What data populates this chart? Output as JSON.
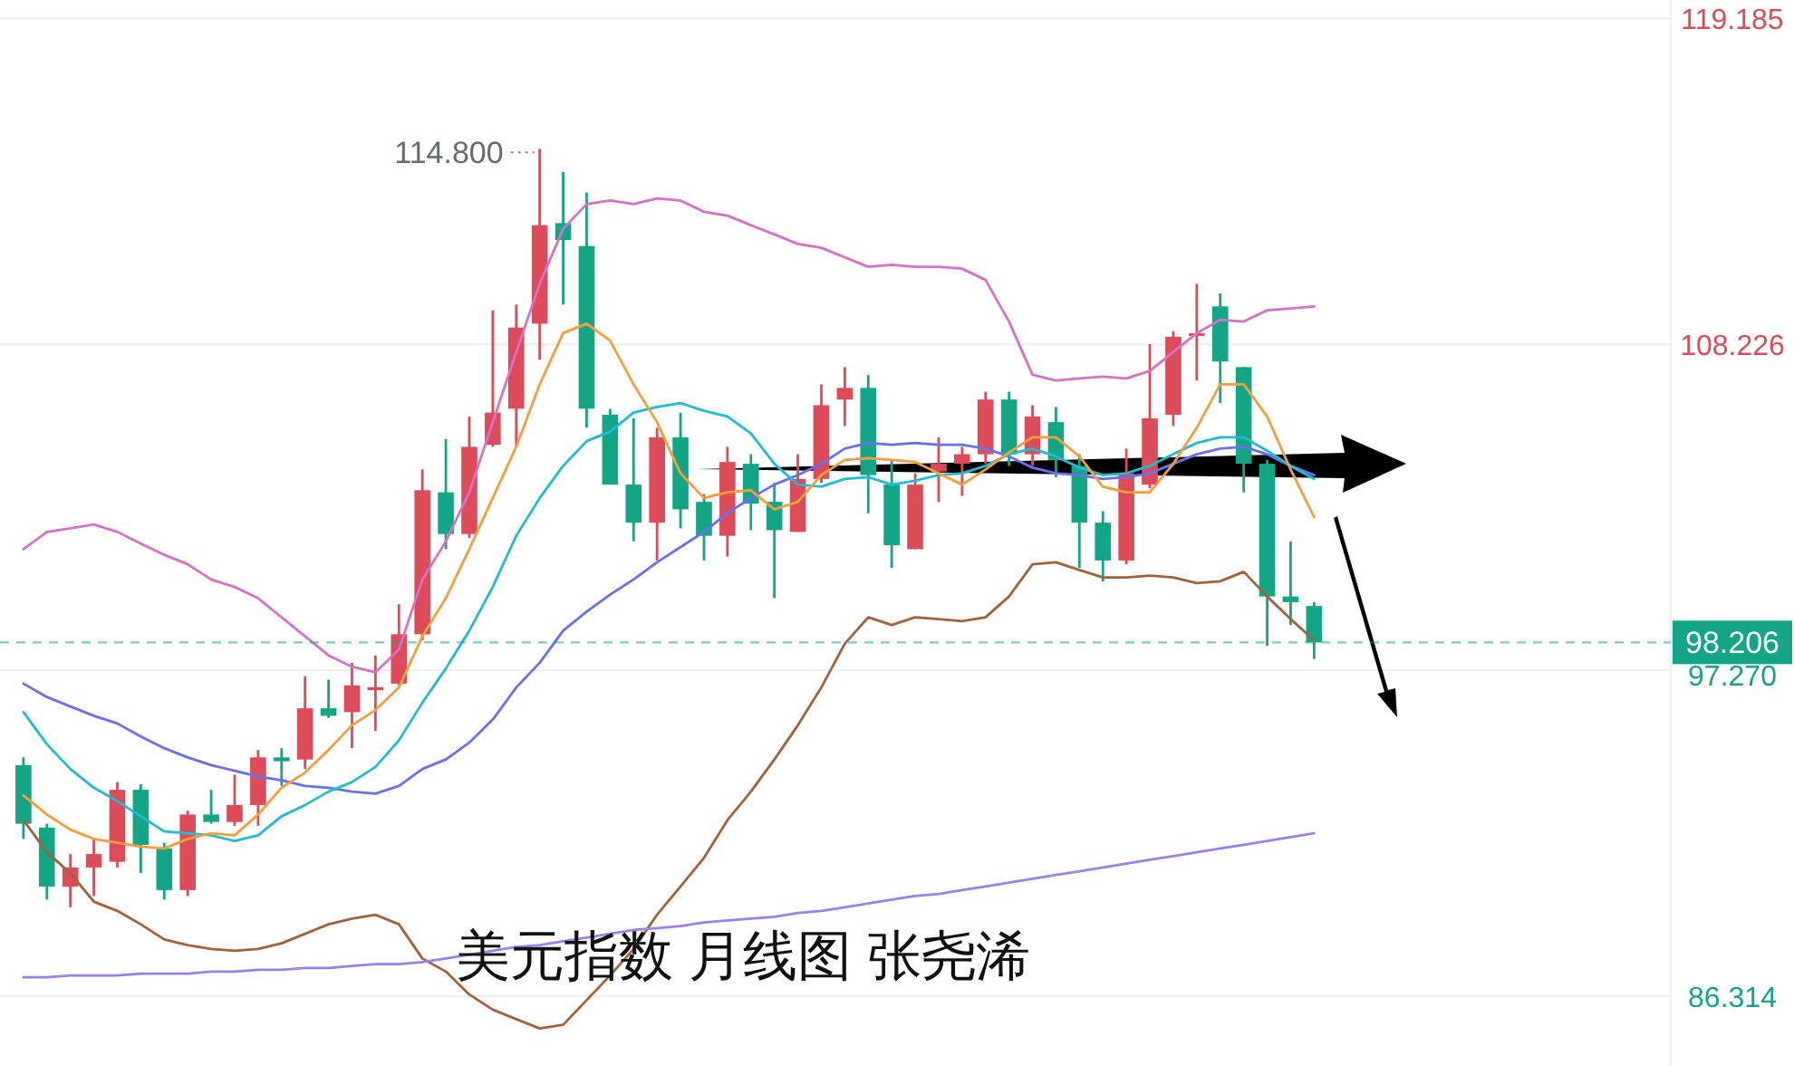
{
  "chart_data": {
    "type": "candlestick",
    "categories": [
      null,
      null,
      null,
      null,
      null,
      null,
      null,
      null,
      null,
      null,
      null,
      null,
      null,
      null,
      null,
      null,
      null,
      null,
      null,
      null,
      null,
      null,
      null,
      null,
      null,
      null,
      null,
      null,
      null,
      null,
      null,
      null,
      null,
      null,
      null,
      null,
      null,
      null,
      null,
      null,
      null,
      null,
      null,
      null,
      null,
      null,
      null,
      null,
      null,
      null,
      null,
      null,
      null,
      null,
      null,
      null
    ],
    "ohlc": [
      [
        94.08,
        94.34,
        91.6,
        92.11
      ],
      [
        91.98,
        92.11,
        89.56,
        90.0
      ],
      [
        90.0,
        91.09,
        89.3,
        90.64
      ],
      [
        90.64,
        91.6,
        89.68,
        91.09
      ],
      [
        90.83,
        93.51,
        90.64,
        93.25
      ],
      [
        93.25,
        93.44,
        90.45,
        91.4
      ],
      [
        91.28,
        91.47,
        89.56,
        89.88
      ],
      [
        89.88,
        92.55,
        89.68,
        92.42
      ],
      [
        92.42,
        93.25,
        92.11,
        92.17
      ],
      [
        92.17,
        93.76,
        92.04,
        92.74
      ],
      [
        92.74,
        94.59,
        92.04,
        94.34
      ],
      [
        94.34,
        94.65,
        93.38,
        94.21
      ],
      [
        94.27,
        97.07,
        93.95,
        95.99
      ],
      [
        95.99,
        96.95,
        95.67,
        95.74
      ],
      [
        95.86,
        97.52,
        94.65,
        96.76
      ],
      [
        96.6,
        97.77,
        95.23,
        96.7
      ],
      [
        96.82,
        99.49,
        96.76,
        98.48
      ],
      [
        98.48,
        104.02,
        98.28,
        103.32
      ],
      [
        103.25,
        105.04,
        101.34,
        101.85
      ],
      [
        101.85,
        105.8,
        101.72,
        104.78
      ],
      [
        104.85,
        109.37,
        104.78,
        105.93
      ],
      [
        106.06,
        109.56,
        104.78,
        108.79
      ],
      [
        108.92,
        114.8,
        107.71,
        112.23
      ],
      [
        112.3,
        114.02,
        109.56,
        111.73
      ],
      [
        111.53,
        113.32,
        105.42,
        106.06
      ],
      [
        105.86,
        106.06,
        103.51,
        103.51
      ],
      [
        103.51,
        105.74,
        101.6,
        102.23
      ],
      [
        102.23,
        105.42,
        100.96,
        105.1
      ],
      [
        105.1,
        105.93,
        102.04,
        102.68
      ],
      [
        102.93,
        103.19,
        100.96,
        101.79
      ],
      [
        101.79,
        104.78,
        101.09,
        104.27
      ],
      [
        104.21,
        104.53,
        101.98,
        102.87
      ],
      [
        102.93,
        103.57,
        99.69,
        101.98
      ],
      [
        101.92,
        104.53,
        101.92,
        103.7
      ],
      [
        103.7,
        106.88,
        103.57,
        106.18
      ],
      [
        106.37,
        107.46,
        105.48,
        106.76
      ],
      [
        106.76,
        107.2,
        102.55,
        103.83
      ],
      [
        103.51,
        104.34,
        100.71,
        101.47
      ],
      [
        101.34,
        103.89,
        101.34,
        103.51
      ],
      [
        103.95,
        105.1,
        102.93,
        104.21
      ],
      [
        104.21,
        104.78,
        103.13,
        104.53
      ],
      [
        104.53,
        106.63,
        104.21,
        106.37
      ],
      [
        106.37,
        106.63,
        104.14,
        104.53
      ],
      [
        104.53,
        106.18,
        104.14,
        105.8
      ],
      [
        105.61,
        106.12,
        103.76,
        104.34
      ],
      [
        104.14,
        104.53,
        100.71,
        102.23
      ],
      [
        102.23,
        102.62,
        100.26,
        100.96
      ],
      [
        100.96,
        104.72,
        100.83,
        103.89
      ],
      [
        103.51,
        108.23,
        103.38,
        105.74
      ],
      [
        105.86,
        108.67,
        105.48,
        108.48
      ],
      [
        108.55,
        110.26,
        107.01,
        108.6
      ],
      [
        109.5,
        109.94,
        106.25,
        107.65
      ],
      [
        107.46,
        107.46,
        103.25,
        104.21
      ],
      [
        104.21,
        104.34,
        98.09,
        99.75
      ],
      [
        99.75,
        101.6,
        98.79,
        99.56
      ],
      [
        99.43,
        99.56,
        97.65,
        98.206
      ]
    ],
    "colors": [
      "#12a586",
      "#12a586",
      "#dd4b58",
      "#dd4b58",
      "#dd4b58",
      "#12a586",
      "#12a586",
      "#dd4b58",
      "#12a586",
      "#dd4b58",
      "#dd4b58",
      "#12a586",
      "#dd4b58",
      "#12a586",
      "#dd4b58",
      "#dd4b58",
      "#dd4b58",
      "#dd4b58",
      "#12a586",
      "#dd4b58",
      "#dd4b58",
      "#dd4b58",
      "#dd4b58",
      "#12a586",
      "#12a586",
      "#12a586",
      "#12a586",
      "#dd4b58",
      "#12a586",
      "#12a586",
      "#dd4b58",
      "#12a586",
      "#12a586",
      "#dd4b58",
      "#dd4b58",
      "#dd4b58",
      "#12a586",
      "#12a586",
      "#dd4b58",
      "#dd4b58",
      "#dd4b58",
      "#dd4b58",
      "#12a586",
      "#dd4b58",
      "#12a586",
      "#12a586",
      "#12a586",
      "#dd4b58",
      "#dd4b58",
      "#dd4b58",
      "#dd4b58",
      "#12a586",
      "#12a586",
      "#12a586",
      "#12a586",
      "#12a586"
    ],
    "series": [
      {
        "type": "line",
        "color": "#d771c8",
        "values": [
          101.34,
          101.92,
          102.04,
          102.17,
          101.92,
          101.53,
          101.15,
          100.83,
          100.32,
          100.07,
          99.69,
          99.05,
          98.41,
          97.77,
          97.39,
          97.2,
          97.97,
          100.32,
          101.6,
          103.25,
          105.61,
          107.97,
          110.26,
          112.11,
          112.94,
          113.06,
          112.94,
          113.13,
          113.06,
          112.68,
          112.55,
          112.23,
          111.92,
          111.6,
          111.47,
          111.15,
          110.83,
          110.9,
          110.83,
          110.83,
          110.77,
          110.39,
          108.99,
          107.2,
          107.01,
          107.08,
          107.14,
          107.08,
          107.33,
          107.97,
          108.6,
          109.05,
          108.99,
          109.37,
          109.43,
          109.5
        ]
      },
      {
        "type": "line",
        "color": "#a3623c",
        "values": [
          92.23,
          91.15,
          90.45,
          89.49,
          89.18,
          88.73,
          88.22,
          88.03,
          87.9,
          87.84,
          87.9,
          88.09,
          88.41,
          88.73,
          88.92,
          89.05,
          88.73,
          87.58,
          87.14,
          86.37,
          85.86,
          85.54,
          85.23,
          85.35,
          86.18,
          87.01,
          87.9,
          89.05,
          90.0,
          90.96,
          92.23,
          93.19,
          94.27,
          95.42,
          96.69,
          98.16,
          99.05,
          98.79,
          99.05,
          98.99,
          98.92,
          99.05,
          99.75,
          100.83,
          100.9,
          100.64,
          100.39,
          100.39,
          100.45,
          100.39,
          100.2,
          100.26,
          100.58,
          99.75,
          98.99,
          98.28
        ]
      },
      {
        "type": "line",
        "color": "#9c80ee",
        "values": [
          86.95,
          86.95,
          87.01,
          87.01,
          87.01,
          87.07,
          87.07,
          87.07,
          87.14,
          87.14,
          87.2,
          87.2,
          87.26,
          87.26,
          87.33,
          87.39,
          87.39,
          87.46,
          87.58,
          87.71,
          87.84,
          87.97,
          88.03,
          88.16,
          88.28,
          88.41,
          88.54,
          88.6,
          88.67,
          88.79,
          88.86,
          88.92,
          88.98,
          89.11,
          89.18,
          89.3,
          89.43,
          89.56,
          89.68,
          89.75,
          89.88,
          90.0,
          90.13,
          90.26,
          90.39,
          90.51,
          90.64,
          90.77,
          90.9,
          91.02,
          91.15,
          91.28,
          91.4,
          91.53,
          91.66,
          91.79
        ]
      },
      {
        "type": "line",
        "color": "#6a6ff0",
        "values": [
          96.82,
          96.37,
          96.05,
          95.74,
          95.48,
          95.04,
          94.65,
          94.34,
          94.08,
          93.89,
          93.7,
          93.57,
          93.38,
          93.32,
          93.19,
          93.12,
          93.38,
          93.95,
          94.27,
          94.84,
          95.61,
          96.69,
          97.52,
          98.6,
          99.24,
          99.81,
          100.32,
          100.9,
          101.41,
          101.92,
          102.55,
          103.06,
          103.51,
          103.83,
          104.21,
          104.72,
          104.91,
          104.85,
          104.91,
          104.85,
          104.85,
          104.72,
          104.46,
          104.08,
          103.89,
          103.83,
          103.7,
          103.76,
          103.89,
          104.21,
          104.53,
          104.72,
          104.78,
          104.53,
          104.14,
          103.83
        ]
      },
      {
        "type": "line",
        "color": "#1fbcd4",
        "values": [
          95.86,
          94.78,
          93.95,
          93.32,
          92.87,
          92.36,
          91.85,
          91.79,
          91.72,
          91.53,
          91.72,
          92.36,
          92.74,
          93.19,
          93.51,
          94.02,
          94.91,
          96.18,
          97.33,
          98.6,
          100.07,
          101.79,
          103.06,
          104.14,
          104.97,
          105.29,
          105.93,
          106.12,
          106.25,
          105.99,
          105.8,
          105.23,
          104.21,
          103.51,
          103.44,
          103.7,
          103.76,
          103.51,
          103.64,
          103.83,
          103.89,
          104.14,
          104.53,
          104.72,
          104.46,
          104.08,
          103.83,
          103.89,
          104.14,
          104.53,
          104.91,
          105.1,
          105.1,
          104.65,
          104.14,
          103.7
        ]
      },
      {
        "type": "line",
        "color": "#f99d3a",
        "values": [
          93.06,
          92.42,
          91.91,
          91.6,
          91.47,
          91.34,
          91.28,
          91.6,
          91.79,
          91.72,
          92.42,
          93.32,
          93.83,
          94.59,
          95.42,
          95.93,
          96.69,
          98.41,
          99.69,
          101.34,
          103.06,
          104.78,
          106.88,
          108.6,
          108.92,
          108.35,
          106.88,
          105.61,
          103.89,
          103.06,
          103.25,
          103.32,
          102.68,
          102.93,
          103.83,
          104.34,
          104.4,
          104.34,
          104.27,
          103.89,
          103.51,
          104.02,
          104.59,
          105.1,
          105.1,
          104.46,
          103.44,
          103.25,
          103.25,
          104.21,
          105.42,
          106.88,
          106.88,
          105.8,
          104.02,
          102.42
        ]
      }
    ],
    "ylim": [
      84,
      119.8
    ],
    "yticks": [
      86.314,
      {
        "value": 97.27,
        "label": "97.270"
      },
      108.226,
      119.185
    ],
    "grid": "y",
    "ref_lines": [
      {
        "axis": "y",
        "value": 98.206,
        "label": "98.206",
        "color": "#12a586",
        "line_style": "dashed"
      }
    ],
    "annotations": [
      "114.800",
      "美元指数 月线图 张尧浠"
    ]
  }
}
